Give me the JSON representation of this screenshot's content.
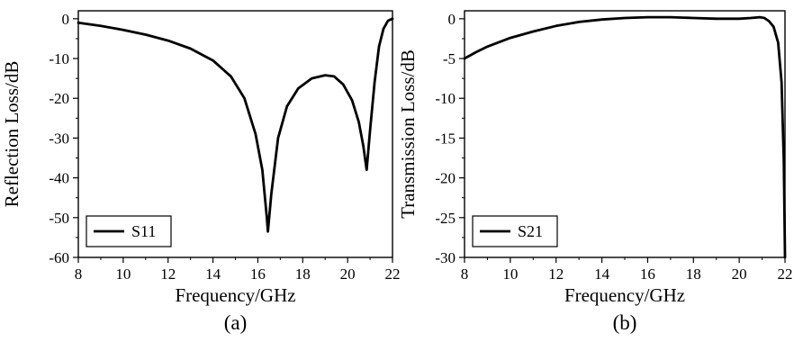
{
  "chart_data": [
    {
      "type": "line",
      "panel_label": "(a)",
      "xlabel": "Frequency/GHz",
      "ylabel": "Reflection Loss/dB",
      "xlim": [
        8,
        22
      ],
      "ylim": [
        -60,
        2
      ],
      "xticks": [
        8,
        10,
        12,
        14,
        16,
        18,
        20,
        22
      ],
      "yticks": [
        0,
        -10,
        -20,
        -30,
        -40,
        -50,
        -60
      ],
      "legend_position": "bottom-left",
      "series": [
        {
          "name": "S11",
          "color": "#000000",
          "x": [
            8.0,
            9.0,
            10.0,
            11.0,
            12.0,
            13.0,
            14.0,
            14.8,
            15.4,
            15.9,
            16.2,
            16.4,
            16.45,
            16.6,
            16.9,
            17.3,
            17.8,
            18.4,
            19.0,
            19.4,
            19.8,
            20.2,
            20.5,
            20.7,
            20.85,
            21.0,
            21.2,
            21.4,
            21.6,
            21.8,
            22.0
          ],
          "y": [
            -1.0,
            -1.8,
            -2.8,
            -4.0,
            -5.5,
            -7.5,
            -10.5,
            -14.5,
            -20.0,
            -29.0,
            -38.0,
            -50.0,
            -53.5,
            -44.0,
            -30.0,
            -22.0,
            -17.5,
            -15.0,
            -14.2,
            -14.5,
            -16.5,
            -20.5,
            -26.0,
            -32.0,
            -38.0,
            -28.0,
            -16.0,
            -7.0,
            -2.5,
            -0.5,
            0.0
          ]
        }
      ]
    },
    {
      "type": "line",
      "panel_label": "(b)",
      "xlabel": "Frequency/GHz",
      "ylabel": "Transmission Loss/dB",
      "xlim": [
        8,
        22
      ],
      "ylim": [
        -30,
        1
      ],
      "xticks": [
        8,
        10,
        12,
        14,
        16,
        18,
        20,
        22
      ],
      "yticks": [
        0,
        -5,
        -10,
        -15,
        -20,
        -25,
        -30
      ],
      "legend_position": "bottom-left",
      "series": [
        {
          "name": "S21",
          "color": "#000000",
          "x": [
            8.0,
            8.5,
            9.0,
            10.0,
            11.0,
            12.0,
            13.0,
            14.0,
            15.0,
            16.0,
            17.0,
            18.0,
            19.0,
            20.0,
            20.5,
            20.9,
            21.1,
            21.3,
            21.5,
            21.7,
            21.85,
            21.95,
            22.0
          ],
          "y": [
            -5.0,
            -4.2,
            -3.5,
            -2.4,
            -1.6,
            -0.9,
            -0.4,
            -0.1,
            0.1,
            0.2,
            0.2,
            0.1,
            0.0,
            0.0,
            0.1,
            0.2,
            0.1,
            -0.3,
            -1.0,
            -3.0,
            -8.0,
            -18.0,
            -30.0
          ]
        }
      ]
    }
  ]
}
